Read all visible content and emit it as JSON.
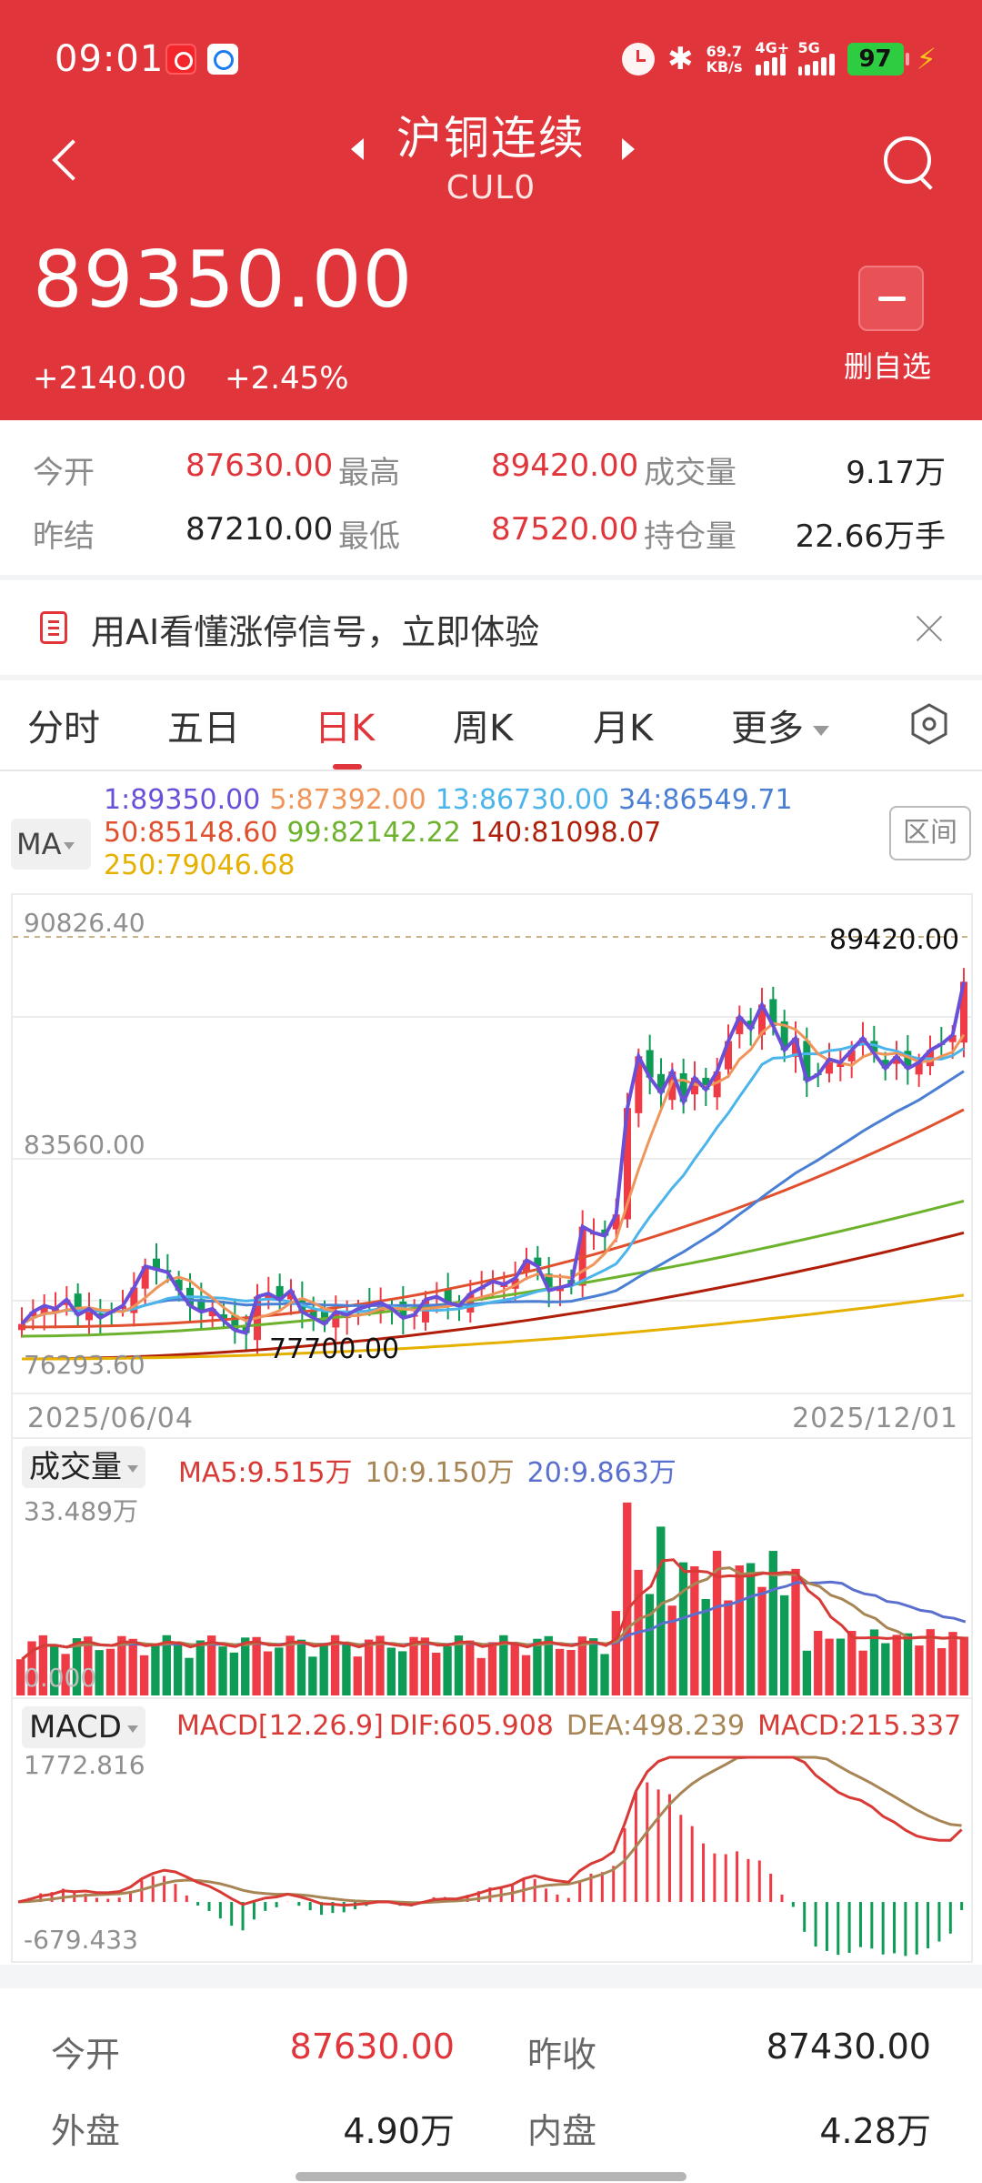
{
  "status_bar": {
    "time": "09:01",
    "net_speed": "69.7",
    "net_unit": "KB/s",
    "sim1": "4G+",
    "sim2": "5G",
    "battery": "97"
  },
  "header": {
    "title": "沪铜连续",
    "code": "CUL0",
    "price": "89350.00",
    "change": "+2140.00",
    "change_pct": "+2.45%",
    "fav_label": "删自选"
  },
  "stats": {
    "row1": [
      {
        "label": "今开",
        "value": "87630.00"
      },
      {
        "label": "最高",
        "value": "89420.00"
      },
      {
        "label": "成交量",
        "value": "9.17万"
      }
    ],
    "row2": [
      {
        "label": "昨结",
        "value": "87210.00"
      },
      {
        "label": "最低",
        "value": "87520.00"
      },
      {
        "label": "持仓量",
        "value": "22.66万手"
      }
    ]
  },
  "ai_banner": {
    "text": "用AI看懂涨停信号，立即体验"
  },
  "tabs": [
    {
      "label": "分时"
    },
    {
      "label": "五日"
    },
    {
      "label": "日K"
    },
    {
      "label": "周K"
    },
    {
      "label": "月K"
    },
    {
      "label": "更多"
    }
  ],
  "ma_legend": {
    "button": "MA",
    "range_button": "区间",
    "items": [
      {
        "text": "1:89350.00",
        "color": "#6a4fd8"
      },
      {
        "text": "5:87392.00",
        "color": "#f0955a"
      },
      {
        "text": "13:86730.00",
        "color": "#4bb4ea"
      },
      {
        "text": "34:86549.71",
        "color": "#4a7fd4"
      },
      {
        "text": "50:85148.60",
        "color": "#e0502e"
      },
      {
        "text": "99:82142.22",
        "color": "#6db22c"
      },
      {
        "text": "140:81098.07",
        "color": "#b01e0a"
      },
      {
        "text": "250:79046.68",
        "color": "#e6b000"
      }
    ]
  },
  "main_chart": {
    "y_top": "90826.40",
    "y_mid": "83560.00",
    "y_bottom": "76293.60",
    "high_marker": "89420.00",
    "low_marker": "77700.00",
    "x_start": "2025/06/04",
    "x_end": "2025/12/01"
  },
  "volume_panel": {
    "button": "成交量",
    "ma5": "MA5:9.515万",
    "ma10": "10:9.150万",
    "ma20": "20:9.863万",
    "y_top": "33.489万",
    "y_bottom": "0.000"
  },
  "macd_panel": {
    "button": "MACD",
    "params": "MACD[12.26.9]",
    "dif": "DIF:605.908",
    "dea": "DEA:498.239",
    "macd": "MACD:215.337",
    "y_top": "1772.816",
    "y_bottom": "-679.433"
  },
  "quote_table": {
    "row1": [
      {
        "label": "今开",
        "value": "87630.00"
      },
      {
        "label": "昨收",
        "value": "87430.00"
      }
    ],
    "row2": [
      {
        "label": "外盘",
        "value": "4.90万"
      },
      {
        "label": "内盘",
        "value": "4.28万"
      }
    ]
  },
  "colors": {
    "brand_red": "#e0353a",
    "up": "#ef3b45",
    "down": "#0d9b55"
  },
  "chart_data": {
    "type": "candlestick",
    "title": "沪铜连续 CUL0 日K",
    "xlabel": "",
    "ylabel": "",
    "x_range": [
      "2025/06/04",
      "2025/12/01"
    ],
    "ylim": [
      76293.6,
      90826.4
    ],
    "y_ticks": [
      90826.4,
      83560.0,
      76293.6
    ],
    "annotations": [
      {
        "label": "high",
        "value": 89420.0
      },
      {
        "label": "low",
        "value": 77700.0
      }
    ],
    "moving_averages": [
      {
        "name": "MA1",
        "value": 89350.0
      },
      {
        "name": "MA5",
        "value": 87392.0
      },
      {
        "name": "MA13",
        "value": 86730.0
      },
      {
        "name": "MA34",
        "value": 86549.71
      },
      {
        "name": "MA50",
        "value": 85148.6
      },
      {
        "name": "MA99",
        "value": 82142.22
      },
      {
        "name": "MA140",
        "value": 81098.07
      },
      {
        "name": "MA250",
        "value": 79046.68
      }
    ],
    "close_series_approx": [
      78100,
      78500,
      78700,
      78600,
      78900,
      78400,
      78600,
      78300,
      78500,
      78700,
      79300,
      80000,
      79900,
      79800,
      79200,
      78700,
      78500,
      78600,
      78200,
      77900,
      77800,
      79000,
      79100,
      78900,
      79200,
      78500,
      78300,
      78100,
      78500,
      78400,
      78600,
      78700,
      78800,
      78600,
      78300,
      78400,
      78900,
      79000,
      78800,
      78700,
      79100,
      79300,
      79500,
      79400,
      79600,
      80200,
      80000,
      79200,
      79300,
      79400,
      81300,
      81100,
      81000,
      81700,
      85200,
      86900,
      86200,
      85700,
      86400,
      85400,
      86200,
      85800,
      86400,
      87400,
      88200,
      87800,
      88600,
      87900,
      87100,
      87500,
      86100,
      86300,
      86800,
      86700,
      87100,
      87500,
      87000,
      86500,
      86900,
      86500,
      86700,
      87100,
      87300,
      87600,
      89350
    ],
    "volume": {
      "ylim": [
        0,
        33.489
      ],
      "unit": "万",
      "ma5": 9.515,
      "ma10": 9.15,
      "ma20": 9.863
    },
    "macd": {
      "params": [
        12,
        26,
        9
      ],
      "ylim": [
        -679.433,
        1772.816
      ],
      "dif": 605.908,
      "dea": 498.239,
      "macd": 215.337
    }
  }
}
